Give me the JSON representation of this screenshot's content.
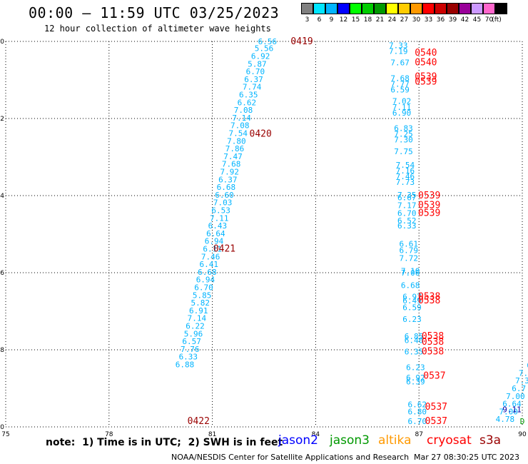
{
  "header": {
    "title": "00:00 – 11:59 UTC 03/25/2023",
    "subtitle": "12 hour collection of altimeter wave heights"
  },
  "legend": {
    "items": [
      {
        "label": "3",
        "color": "#808080"
      },
      {
        "label": "6",
        "color": "#00e5ff"
      },
      {
        "label": "9",
        "color": "#00b4ff"
      },
      {
        "label": "12",
        "color": "#0000ff"
      },
      {
        "label": "15",
        "color": "#00ff00"
      },
      {
        "label": "18",
        "color": "#00cc00"
      },
      {
        "label": "21",
        "color": "#009900"
      },
      {
        "label": "24",
        "color": "#ffff00"
      },
      {
        "label": "27",
        "color": "#ffcc00"
      },
      {
        "label": "30",
        "color": "#ff9900"
      },
      {
        "label": "33",
        "color": "#ff0000"
      },
      {
        "label": "36",
        "color": "#cc0000"
      },
      {
        "label": "39",
        "color": "#990000"
      },
      {
        "label": "42",
        "color": "#990099"
      },
      {
        "label": "45",
        "color": "#cc99ff"
      },
      {
        "label": "70",
        "color": "#ff66cc"
      },
      {
        "label": "",
        "color": "#000000"
      }
    ],
    "unit": "(ft)"
  },
  "footer": {
    "note": "note:  1) Time is in UTC;  2) SWH is in feet",
    "satellites": [
      {
        "name": "jason2",
        "color": "#0000ff"
      },
      {
        "name": "jason3",
        "color": "#009900"
      },
      {
        "name": "altika",
        "color": "#ff9900"
      },
      {
        "name": "cryosat",
        "color": "#ff0000"
      },
      {
        "name": "s3a",
        "color": "#990000"
      }
    ],
    "credit": "NOAA/NESDIS Center for Satellite Applications and Research",
    "date": "Mar 27 08:30:25 UTC 2023"
  },
  "chart_data": {
    "type": "scatter",
    "title": "00:00 – 11:59 UTC 03/25/2023",
    "subtitle": "12 hour collection of altimeter wave heights",
    "xlabel": "",
    "ylabel": "",
    "xlim": [
      75,
      90
    ],
    "ylim": [
      -30,
      -20
    ],
    "x_ticks": [
      75,
      78,
      81,
      84,
      87,
      90
    ],
    "y_ticks": [
      -20,
      -22,
      -24,
      -26,
      -28,
      -30
    ],
    "x_tick_labels": [
      "75",
      "78",
      "81",
      "84",
      "87",
      "90"
    ],
    "y_tick_labels": [
      "-20",
      "-22",
      "-24",
      "-26",
      "-28",
      "-30"
    ],
    "grid": true,
    "series": [
      {
        "color": "#00b4ff",
        "points": [
          {
            "x": 82.6,
            "y": -20.0,
            "label": "6.56"
          },
          {
            "x": 82.5,
            "y": -20.18,
            "label": "5.56"
          },
          {
            "x": 82.4,
            "y": -20.38,
            "label": "6.92"
          },
          {
            "x": 82.3,
            "y": -20.58,
            "label": "5.87"
          },
          {
            "x": 82.25,
            "y": -20.78,
            "label": "6.70"
          },
          {
            "x": 82.2,
            "y": -20.98,
            "label": "6.37"
          },
          {
            "x": 82.15,
            "y": -21.18,
            "label": "7.74"
          },
          {
            "x": 82.05,
            "y": -21.38,
            "label": "6.35"
          },
          {
            "x": 82.0,
            "y": -21.58,
            "label": "6.62"
          },
          {
            "x": 81.9,
            "y": -21.78,
            "label": "7.08"
          },
          {
            "x": 81.85,
            "y": -21.98,
            "label": "7.14"
          },
          {
            "x": 81.8,
            "y": -22.18,
            "label": "7.08"
          },
          {
            "x": 81.75,
            "y": -22.38,
            "label": "7.54"
          },
          {
            "x": 81.7,
            "y": -22.58,
            "label": "7.80"
          },
          {
            "x": 81.65,
            "y": -22.78,
            "label": "7.86"
          },
          {
            "x": 81.6,
            "y": -22.98,
            "label": "7.47"
          },
          {
            "x": 81.55,
            "y": -23.18,
            "label": "7.68"
          },
          {
            "x": 81.5,
            "y": -23.38,
            "label": "7.92"
          },
          {
            "x": 81.45,
            "y": -23.58,
            "label": "6.37"
          },
          {
            "x": 81.4,
            "y": -23.78,
            "label": "6.68"
          },
          {
            "x": 81.35,
            "y": -23.98,
            "label": "6.60"
          },
          {
            "x": 81.3,
            "y": -24.18,
            "label": "7.03"
          },
          {
            "x": 81.25,
            "y": -24.38,
            "label": "6.53"
          },
          {
            "x": 81.2,
            "y": -24.58,
            "label": "7.11"
          },
          {
            "x": 81.15,
            "y": -24.78,
            "label": "6.43"
          },
          {
            "x": 81.1,
            "y": -24.98,
            "label": "6.64"
          },
          {
            "x": 81.05,
            "y": -25.18,
            "label": "6.94"
          },
          {
            "x": 81.0,
            "y": -25.38,
            "label": "6.11"
          },
          {
            "x": 80.95,
            "y": -25.58,
            "label": "7.46"
          },
          {
            "x": 80.9,
            "y": -25.78,
            "label": "6.41"
          },
          {
            "x": 80.85,
            "y": -25.98,
            "label": "6.68"
          },
          {
            "x": 80.8,
            "y": -26.18,
            "label": "6.94"
          },
          {
            "x": 80.75,
            "y": -26.38,
            "label": "6.70"
          },
          {
            "x": 80.7,
            "y": -26.58,
            "label": "5.85"
          },
          {
            "x": 80.65,
            "y": -26.78,
            "label": "5.82"
          },
          {
            "x": 80.6,
            "y": -26.98,
            "label": "6.91"
          },
          {
            "x": 80.55,
            "y": -27.18,
            "label": "7.14"
          },
          {
            "x": 80.5,
            "y": -27.38,
            "label": "6.22"
          },
          {
            "x": 80.45,
            "y": -27.58,
            "label": "5.96"
          },
          {
            "x": 80.4,
            "y": -27.78,
            "label": "6.57"
          },
          {
            "x": 80.35,
            "y": -27.98,
            "label": "7.76"
          },
          {
            "x": 80.3,
            "y": -28.18,
            "label": "6.33"
          },
          {
            "x": 80.2,
            "y": -28.38,
            "label": "6.88"
          },
          {
            "x": 86.4,
            "y": -20.1,
            "label": "7.33"
          },
          {
            "x": 86.4,
            "y": -20.25,
            "label": "7.19"
          },
          {
            "x": 86.45,
            "y": -20.55,
            "label": "7.67"
          },
          {
            "x": 86.45,
            "y": -20.95,
            "label": "7.68"
          },
          {
            "x": 86.45,
            "y": -21.1,
            "label": "7.77"
          },
          {
            "x": 86.45,
            "y": -21.25,
            "label": "6.59"
          },
          {
            "x": 86.5,
            "y": -21.55,
            "label": "7.02"
          },
          {
            "x": 86.5,
            "y": -21.7,
            "label": "7.11"
          },
          {
            "x": 86.5,
            "y": -21.85,
            "label": "6.90"
          },
          {
            "x": 86.55,
            "y": -22.25,
            "label": "6.83"
          },
          {
            "x": 86.55,
            "y": -22.4,
            "label": "7.25"
          },
          {
            "x": 86.55,
            "y": -22.55,
            "label": "7.30"
          },
          {
            "x": 86.55,
            "y": -22.85,
            "label": "7.75"
          },
          {
            "x": 86.6,
            "y": -23.2,
            "label": "7.54"
          },
          {
            "x": 86.6,
            "y": -23.35,
            "label": "7.16"
          },
          {
            "x": 86.6,
            "y": -23.5,
            "label": "7.46"
          },
          {
            "x": 86.6,
            "y": -23.65,
            "label": "7.73"
          },
          {
            "x": 86.65,
            "y": -23.98,
            "label": "7.35"
          },
          {
            "x": 86.65,
            "y": -24.05,
            "label": "6.67"
          },
          {
            "x": 86.65,
            "y": -24.25,
            "label": "7.17"
          },
          {
            "x": 86.65,
            "y": -24.45,
            "label": "6.70"
          },
          {
            "x": 86.65,
            "y": -24.65,
            "label": "6.52"
          },
          {
            "x": 86.65,
            "y": -24.78,
            "label": "6.33"
          },
          {
            "x": 86.7,
            "y": -25.25,
            "label": "6.61"
          },
          {
            "x": 86.7,
            "y": -25.42,
            "label": "6.79"
          },
          {
            "x": 86.7,
            "y": -25.62,
            "label": "7.72"
          },
          {
            "x": 86.75,
            "y": -25.95,
            "label": "7.10"
          },
          {
            "x": 86.75,
            "y": -26.0,
            "label": "7.06"
          },
          {
            "x": 86.75,
            "y": -26.32,
            "label": "6.68"
          },
          {
            "x": 86.8,
            "y": -26.62,
            "label": "6.97"
          },
          {
            "x": 86.8,
            "y": -26.72,
            "label": "6.49"
          },
          {
            "x": 86.8,
            "y": -26.9,
            "label": "6.59"
          },
          {
            "x": 86.8,
            "y": -27.2,
            "label": "6.23"
          },
          {
            "x": 86.85,
            "y": -27.65,
            "label": "6.85"
          },
          {
            "x": 86.85,
            "y": -27.75,
            "label": "6.40"
          },
          {
            "x": 86.85,
            "y": -28.05,
            "label": "6.35"
          },
          {
            "x": 86.9,
            "y": -28.45,
            "label": "6.23"
          },
          {
            "x": 86.9,
            "y": -28.72,
            "label": "6.92"
          },
          {
            "x": 86.9,
            "y": -28.82,
            "label": "6.39"
          },
          {
            "x": 86.95,
            "y": -29.42,
            "label": "6.62"
          },
          {
            "x": 86.95,
            "y": -29.6,
            "label": "6.80"
          },
          {
            "x": 86.95,
            "y": -29.85,
            "label": "6.70"
          },
          {
            "x": 90.2,
            "y": -28.4,
            "label": "6"
          },
          {
            "x": 90.1,
            "y": -28.6,
            "label": "7.3"
          },
          {
            "x": 90.0,
            "y": -28.8,
            "label": "7.3"
          },
          {
            "x": 89.9,
            "y": -29.0,
            "label": "6.7"
          },
          {
            "x": 89.8,
            "y": -29.2,
            "label": "7.00"
          },
          {
            "x": 89.7,
            "y": -29.4,
            "label": "6.64"
          },
          {
            "x": 89.6,
            "y": -29.6,
            "label": "7.00"
          },
          {
            "x": 89.5,
            "y": -29.8,
            "label": "4.78"
          }
        ]
      },
      {
        "color": "#0000aa",
        "points": [
          {
            "x": 89.7,
            "y": -29.55,
            "label": "9.11"
          }
        ]
      },
      {
        "color": "#009900",
        "points": [
          {
            "x": 90.0,
            "y": -29.85,
            "label": "D"
          }
        ]
      },
      {
        "color": "#990000",
        "points": [
          {
            "x": 83.6,
            "y": -20.0,
            "label": "0419"
          },
          {
            "x": 82.4,
            "y": -22.4,
            "label": "0420"
          },
          {
            "x": 81.35,
            "y": -25.38,
            "label": "0421"
          },
          {
            "x": 80.6,
            "y": -29.85,
            "label": "0422"
          }
        ]
      },
      {
        "color": "#ff0000",
        "points": [
          {
            "x": 87.2,
            "y": -20.3,
            "label": "0540"
          },
          {
            "x": 87.2,
            "y": -20.55,
            "label": "0540"
          },
          {
            "x": 87.2,
            "y": -20.92,
            "label": "0539"
          },
          {
            "x": 87.2,
            "y": -21.05,
            "label": "0539"
          },
          {
            "x": 87.3,
            "y": -24.0,
            "label": "0539"
          },
          {
            "x": 87.3,
            "y": -24.25,
            "label": "0539"
          },
          {
            "x": 87.3,
            "y": -24.45,
            "label": "0539"
          },
          {
            "x": 87.3,
            "y": -26.62,
            "label": "0538"
          },
          {
            "x": 87.3,
            "y": -26.72,
            "label": "0538"
          },
          {
            "x": 87.4,
            "y": -27.65,
            "label": "0538"
          },
          {
            "x": 87.4,
            "y": -27.8,
            "label": "0538"
          },
          {
            "x": 87.4,
            "y": -28.05,
            "label": "0538"
          },
          {
            "x": 87.45,
            "y": -28.68,
            "label": "0537"
          },
          {
            "x": 87.5,
            "y": -29.48,
            "label": "0537"
          },
          {
            "x": 87.5,
            "y": -29.85,
            "label": "0537"
          }
        ]
      }
    ]
  }
}
